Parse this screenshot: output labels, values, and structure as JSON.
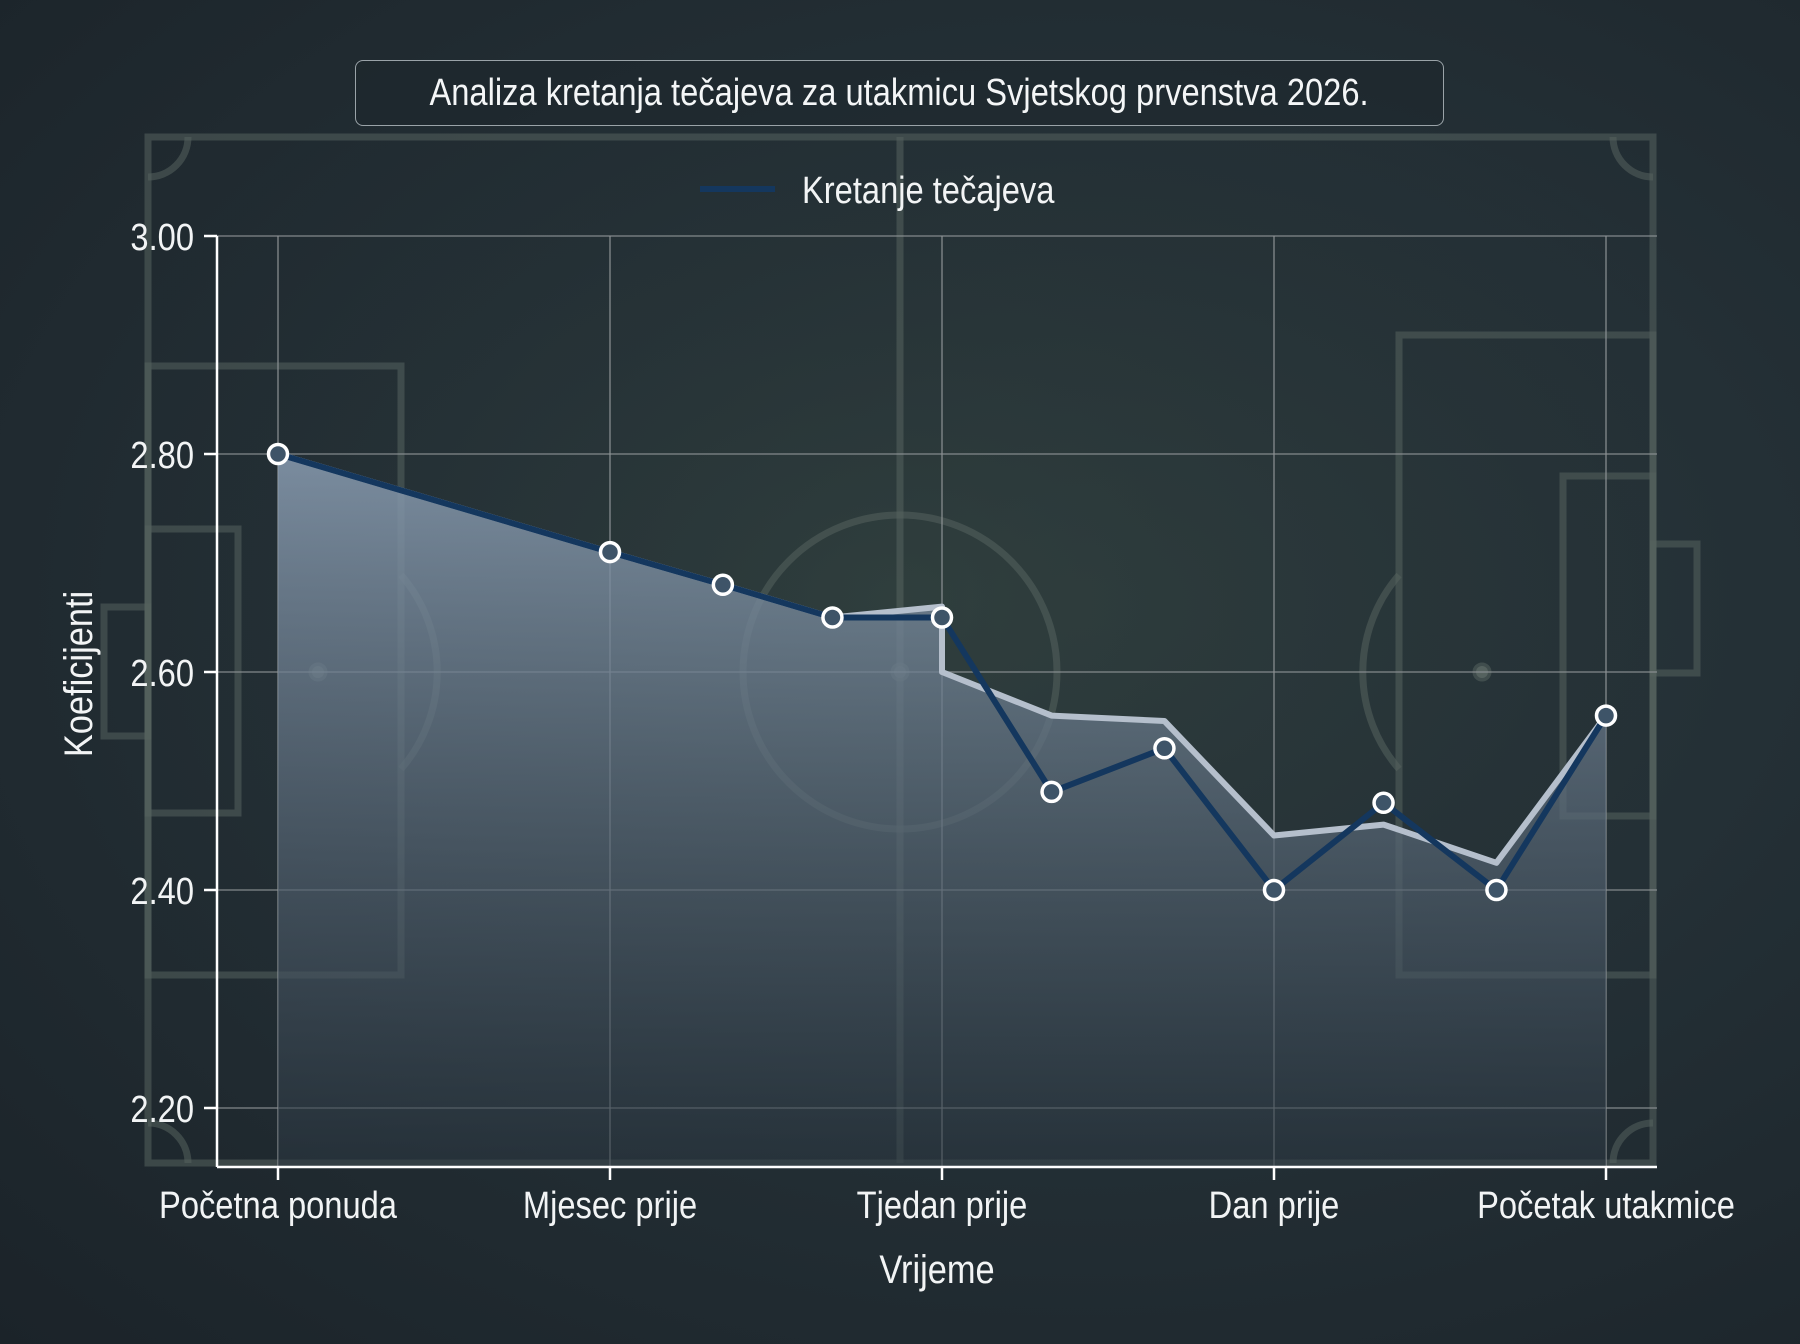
{
  "title": "Analiza kretanja tečajeva za utakmicu Svjetskog prvenstva 2026.",
  "legend": {
    "label": "Kretanje tečajeva",
    "color": "#14375e"
  },
  "axes": {
    "xlabel": "Vrijeme",
    "ylabel": "Koeficijenti",
    "yticks": [
      "3.00",
      "2.80",
      "2.60",
      "2.40",
      "2.20"
    ],
    "xticks": [
      "Početna ponuda",
      "Mjesec prije",
      "Tjedan prije",
      "Dan prije",
      "Početak utakmice"
    ]
  },
  "colors": {
    "line": "#14375e",
    "marker_fill": "#3e5468",
    "marker_edge": "#ffffff",
    "area_top": "#8a9db2",
    "area_bottom": "#2a3640",
    "trend_line": "#b5bfcc",
    "grid": "#8d9396",
    "pitch_lines": "#5a6567"
  },
  "chart_data": {
    "type": "line",
    "title": "Analiza kretanja tečajeva za utakmicu Svjetskog prvenstva 2026.",
    "xlabel": "Vrijeme",
    "ylabel": "Koeficijenti",
    "categories": [
      "Početna ponuda",
      "Mjesec prije",
      "Tjedan prije",
      "Dan prije",
      "Početak utakmice"
    ],
    "ylim": [
      2.15,
      3.0
    ],
    "yticks": [
      2.2,
      2.4,
      2.6,
      2.8,
      3.0
    ],
    "grid": true,
    "legend_position": "top-center",
    "series": [
      {
        "name": "Kretanje tečajeva",
        "x": [
          0,
          1,
          1.34,
          1.67,
          2,
          2.33,
          2.67,
          3,
          3.33,
          3.67,
          4
        ],
        "values": [
          2.8,
          2.71,
          2.68,
          2.65,
          2.65,
          2.49,
          2.53,
          2.4,
          2.48,
          2.4,
          2.56
        ]
      },
      {
        "name": "trend (filled area)",
        "x": [
          0,
          1,
          1.34,
          1.67,
          2,
          2,
          2.33,
          2.67,
          3,
          3.33,
          3.67,
          4
        ],
        "values": [
          2.8,
          2.71,
          2.68,
          2.65,
          2.66,
          2.6,
          2.56,
          2.555,
          2.45,
          2.46,
          2.425,
          2.56
        ]
      }
    ]
  }
}
